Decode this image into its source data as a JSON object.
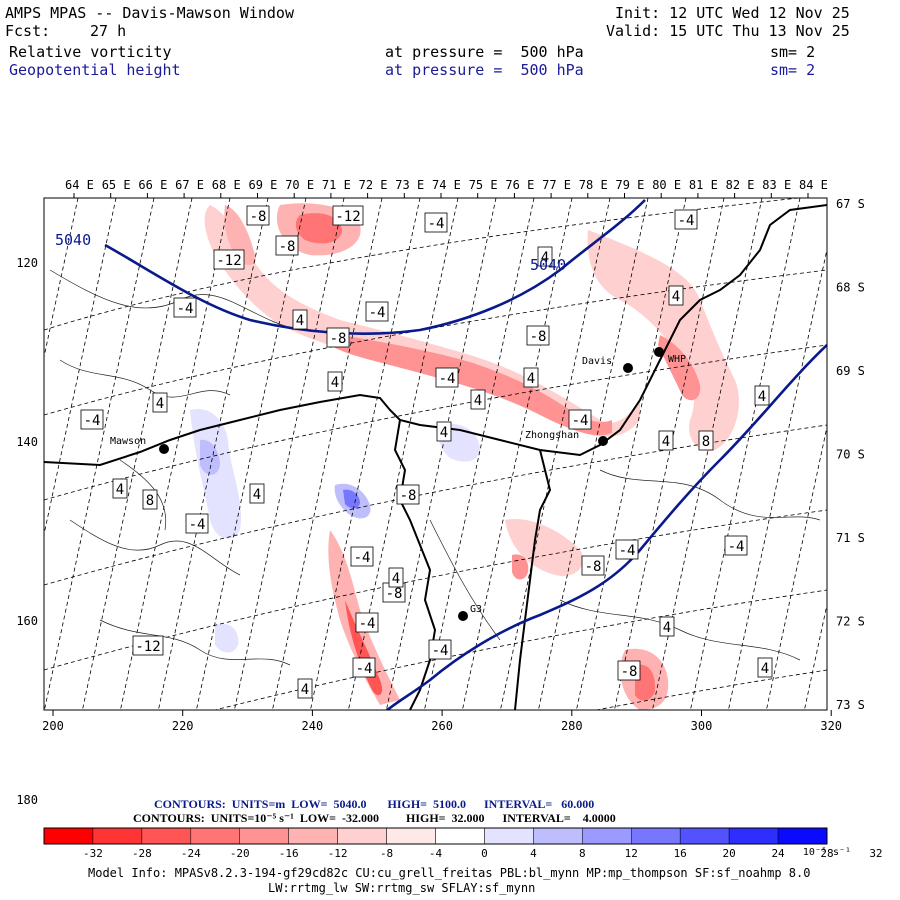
{
  "header": {
    "title": "AMPS MPAS -- Davis-Mawson Window",
    "init": "Init: 12 UTC Wed 12 Nov 25",
    "fcst_label": "Fcst:",
    "fcst_hours": "27 h",
    "valid": "Valid: 15 UTC Thu 13 Nov 25",
    "field1": "Relative vorticity",
    "field1_level": "at pressure =  500 hPa",
    "field1_sm": "sm= 2",
    "field2": "Geopotential height",
    "field2_level": "at pressure =  500 hPa",
    "field2_sm": "sm= 2"
  },
  "top_axis_labels": [
    "64 E",
    "65 E",
    "66 E",
    "67 E",
    "68 E",
    "69 E",
    "70 E",
    "71 E",
    "72 E",
    "73 E",
    "74 E",
    "75 E",
    "76 E",
    "77 E",
    "78 E",
    "79 E",
    "80 E",
    "81 E",
    "82 E",
    "83 E",
    "84 E"
  ],
  "right_axis_labels": [
    "67 S",
    "68 S",
    "69 S",
    "70 S",
    "71 S",
    "72 S",
    "73 S"
  ],
  "left_axis_labels": [
    "120",
    "140",
    "160",
    "180"
  ],
  "bottom_axis_labels": [
    "200",
    "220",
    "240",
    "260",
    "280",
    "300",
    "320"
  ],
  "stations": [
    "Mawson",
    "Davis",
    "WHP",
    "Zhongshan",
    "G3"
  ],
  "height_contour_labels": [
    "5040",
    "5040"
  ],
  "vorticity_contour_labels": [
    "-8",
    "-12",
    "-8",
    "-12",
    "-4",
    "-4",
    "4",
    "4",
    "-4",
    "-8",
    "-4",
    "-8",
    "-4",
    "4",
    "4",
    "4",
    "-4",
    "4",
    "4",
    "8",
    "4",
    "4",
    "8",
    "4",
    "-4",
    "-8",
    "-4",
    "-8",
    "-4",
    "-4",
    "-8",
    "-4",
    "-12",
    "-4",
    "4",
    "4",
    "4",
    "-8",
    "-4",
    "4",
    "4",
    "-4",
    "4"
  ],
  "footer": {
    "height_contours": "CONTOURS:  UNITS=m  LOW=  5040.0       HIGH=  5100.0      INTERVAL=   60.000",
    "vort_contours": "CONTOURS:  UNITS=10⁻⁵ s⁻¹  LOW=  -32.000         HIGH=  32.000      INTERVAL=    4.0000",
    "colorbar_labels": [
      "-32",
      "-28",
      "-24",
      "-20",
      "-16",
      "-12",
      "-8",
      "-4",
      "0",
      "4",
      "8",
      "12",
      "16",
      "20",
      "24",
      "28",
      "32"
    ],
    "colorbar_units": "10⁻⁵ s⁻¹",
    "model_info_1": "Model Info: MPASv8.2.3-194-gf29cd82c CU:cu_grell_freitas PBL:bl_mynn MP:mp_thompson SF:sf_noahmp 8.0",
    "model_info_2": "LW:rrtmg_lw SW:rrtmg_sw SFLAY:sf_mynn"
  },
  "colors": {
    "height_contour": "#0a1a8c",
    "neg_scale": [
      "#ff0000",
      "#ff3535",
      "#ff5555",
      "#ff7474",
      "#ff9393",
      "#ffb2b2",
      "#ffd0d0",
      "#ffe8e8"
    ],
    "pos_scale": [
      "#ffffff",
      "#e3e3ff",
      "#bebeff",
      "#9a9aff",
      "#7676ff",
      "#5252ff",
      "#2e2eff",
      "#0a0aff"
    ]
  }
}
